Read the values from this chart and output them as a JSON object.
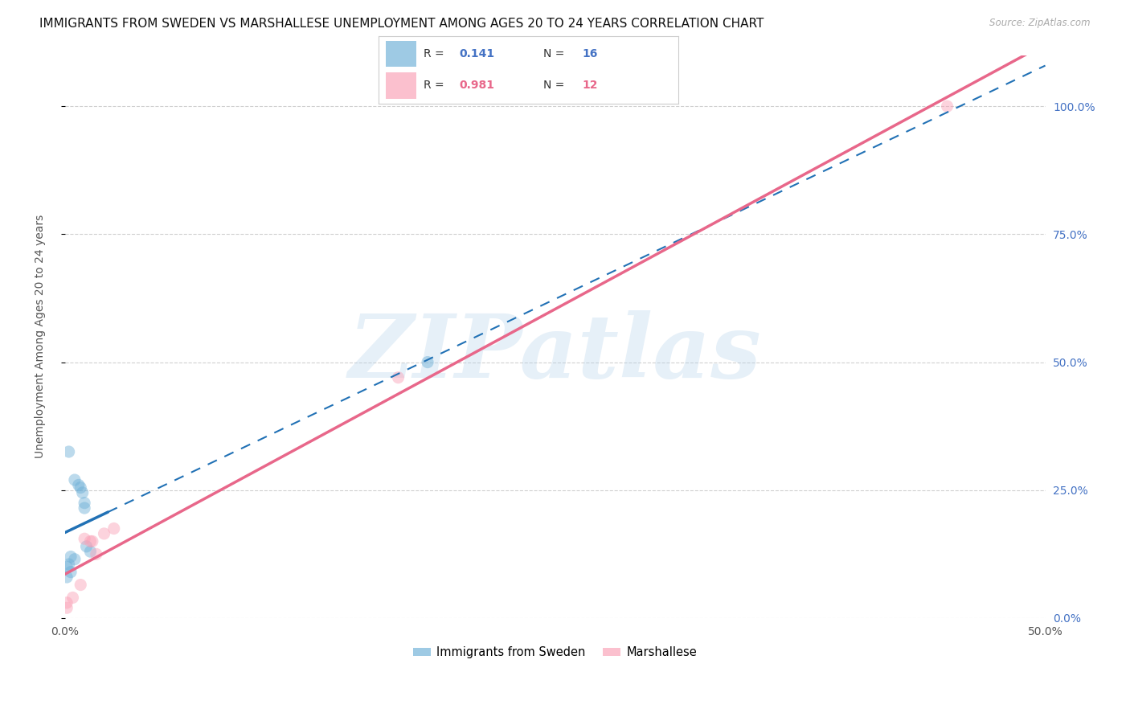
{
  "title": "IMMIGRANTS FROM SWEDEN VS MARSHALLESE UNEMPLOYMENT AMONG AGES 20 TO 24 YEARS CORRELATION CHART",
  "source": "Source: ZipAtlas.com",
  "ylabel": "Unemployment Among Ages 20 to 24 years",
  "watermark": "ZIPatlas",
  "xlim": [
    0.0,
    0.5
  ],
  "ylim": [
    0.0,
    1.1
  ],
  "xtick_positions": [
    0.0,
    0.5
  ],
  "xtick_labels": [
    "0.0%",
    "50.0%"
  ],
  "yticks": [
    0.0,
    0.25,
    0.5,
    0.75,
    1.0
  ],
  "ytick_labels": [
    "0.0%",
    "25.0%",
    "50.0%",
    "75.0%",
    "100.0%"
  ],
  "series1_label": "Immigrants from Sweden",
  "series1_R": "0.141",
  "series1_N": "16",
  "series1_color": "#6baed6",
  "series1_x": [
    0.002,
    0.005,
    0.007,
    0.008,
    0.009,
    0.01,
    0.01,
    0.011,
    0.013,
    0.003,
    0.005,
    0.002,
    0.001,
    0.003,
    0.001,
    0.185
  ],
  "series1_y": [
    0.325,
    0.27,
    0.26,
    0.255,
    0.245,
    0.225,
    0.215,
    0.14,
    0.13,
    0.12,
    0.115,
    0.105,
    0.1,
    0.09,
    0.08,
    0.5
  ],
  "series2_label": "Marshallese",
  "series2_R": "0.981",
  "series2_N": "12",
  "series2_color": "#fa9fb5",
  "series2_x": [
    0.001,
    0.004,
    0.008,
    0.01,
    0.014,
    0.016,
    0.02,
    0.025,
    0.17,
    0.45,
    0.001,
    0.013
  ],
  "series2_y": [
    0.02,
    0.04,
    0.065,
    0.155,
    0.15,
    0.125,
    0.165,
    0.175,
    0.47,
    1.0,
    0.03,
    0.15
  ],
  "trendline1_color": "#2171b5",
  "trendline2_color": "#e8678a",
  "background_color": "#ffffff",
  "grid_color": "#d0d0d0",
  "title_fontsize": 11,
  "axis_fontsize": 10,
  "marker_size": 120,
  "marker_alpha": 0.45,
  "watermark_color": "#b8d4eb",
  "watermark_alpha": 0.35,
  "watermark_fontsize": 80,
  "legend_R1_color": "#4472c4",
  "legend_R2_color": "#e8678a",
  "trendline1_solid_end": 0.022,
  "trendline1_dash_start": 0.022
}
